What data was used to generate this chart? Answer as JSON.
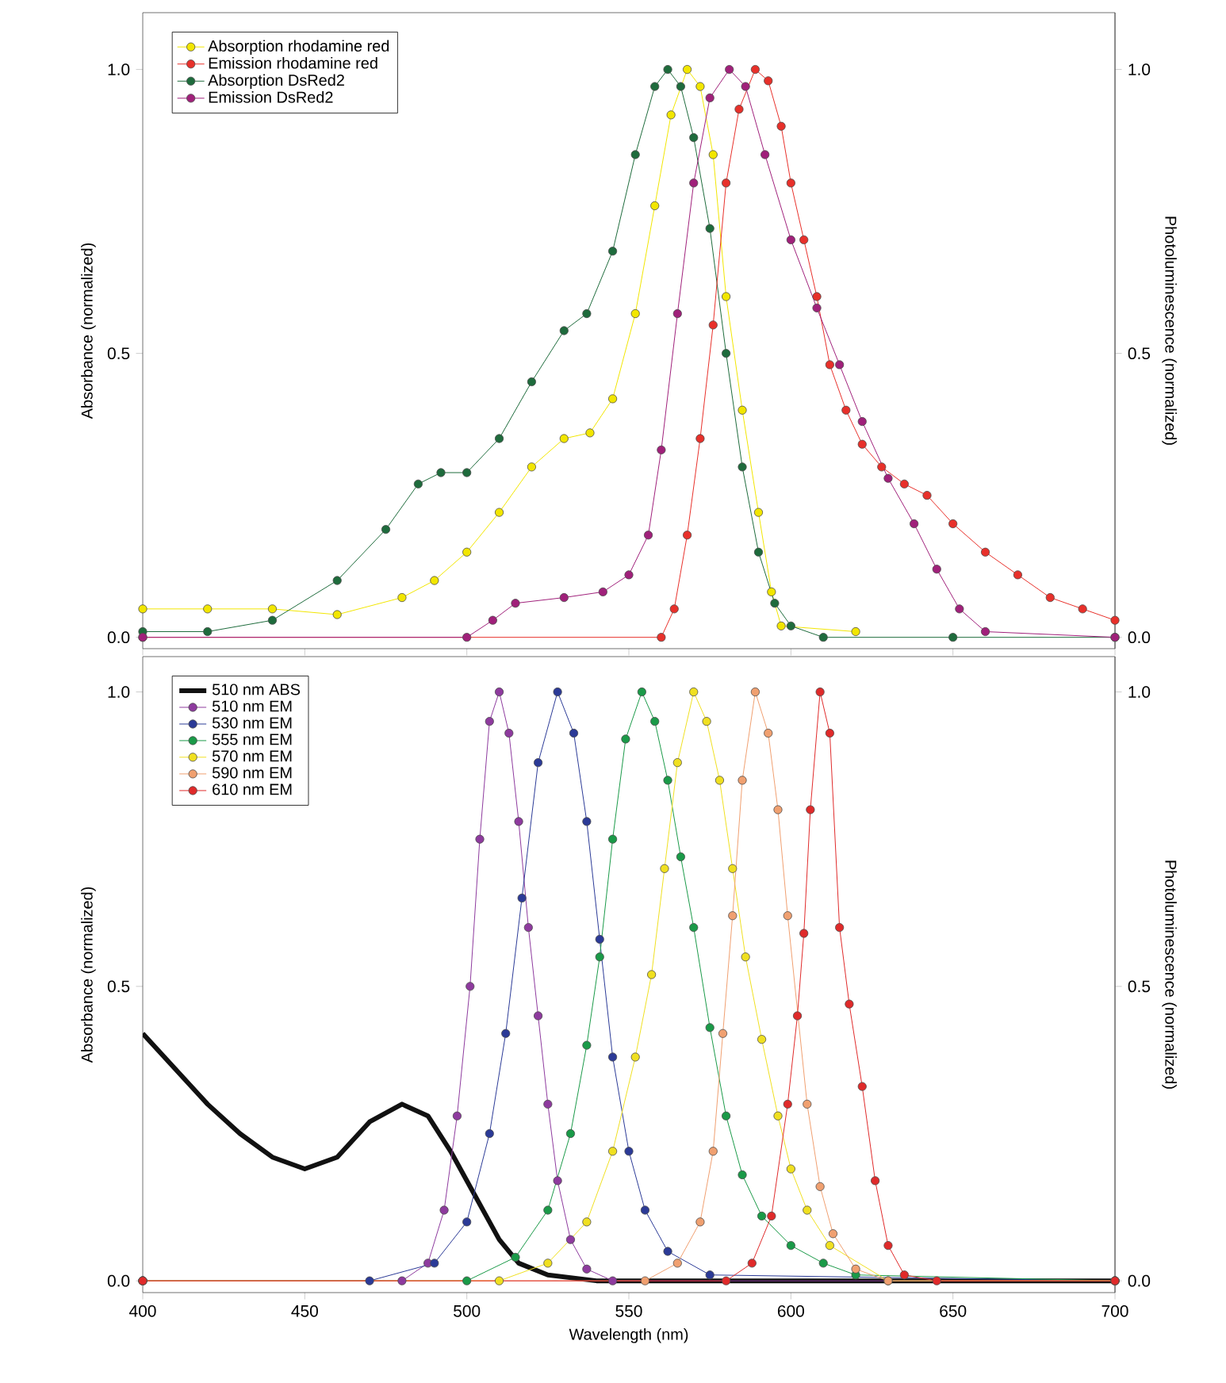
{
  "chart_data": [
    {
      "type": "line",
      "marker": "circle",
      "legend": "top left",
      "tick_labels": "y",
      "ylabel": "Absorbance (normalized)",
      "y2label": "Photoluminescence (normalized)",
      "xlim": [
        400,
        700
      ],
      "xticks": [
        400,
        450,
        500,
        550,
        600,
        650,
        700
      ],
      "ylim": [
        -0.02,
        1.1
      ],
      "yticks": [
        {
          "value": 0,
          "label": "0.0"
        },
        {
          "value": 0.5,
          "label": "0.5"
        },
        {
          "value": 1,
          "label": "1.0"
        }
      ],
      "y2lim": [
        -0.02,
        1.1
      ],
      "y2ticks": [
        {
          "value": 0,
          "label": "0.0"
        },
        {
          "value": 0.5,
          "label": "0.5"
        },
        {
          "value": 1,
          "label": "1.0"
        }
      ],
      "series": [
        {
          "name": "Absorption rhodamine red",
          "color": "#f2e600",
          "axis": "y",
          "x": [
            400,
            420,
            440,
            460,
            480,
            490,
            500,
            510,
            520,
            530,
            538,
            545,
            552,
            558,
            563,
            568,
            572,
            576,
            580,
            585,
            590,
            594,
            597,
            620
          ],
          "values": [
            0.05,
            0.05,
            0.05,
            0.04,
            0.07,
            0.1,
            0.15,
            0.22,
            0.3,
            0.35,
            0.36,
            0.42,
            0.57,
            0.76,
            0.92,
            1.0,
            0.97,
            0.85,
            0.6,
            0.4,
            0.22,
            0.08,
            0.02,
            0.01
          ]
        },
        {
          "name": "Emission rhodamine red",
          "color": "#e8302a",
          "axis": "y2",
          "x": [
            400,
            560,
            564,
            568,
            572,
            576,
            580,
            584,
            589,
            593,
            597,
            600,
            604,
            608,
            612,
            617,
            622,
            628,
            635,
            642,
            650,
            660,
            670,
            680,
            690,
            700
          ],
          "values": [
            0.0,
            0.0,
            0.05,
            0.18,
            0.35,
            0.55,
            0.8,
            0.93,
            1.0,
            0.98,
            0.9,
            0.8,
            0.7,
            0.6,
            0.48,
            0.4,
            0.34,
            0.3,
            0.27,
            0.25,
            0.2,
            0.15,
            0.11,
            0.07,
            0.05,
            0.03
          ]
        },
        {
          "name": "Absorption DsRed2",
          "color": "#1e6b3c",
          "axis": "y",
          "x": [
            400,
            420,
            440,
            460,
            475,
            485,
            492,
            500,
            510,
            520,
            530,
            537,
            545,
            552,
            558,
            562,
            566,
            570,
            575,
            580,
            585,
            590,
            595,
            600,
            610,
            650,
            700
          ],
          "values": [
            0.01,
            0.01,
            0.03,
            0.1,
            0.19,
            0.27,
            0.29,
            0.29,
            0.35,
            0.45,
            0.54,
            0.57,
            0.68,
            0.85,
            0.97,
            1.0,
            0.97,
            0.88,
            0.72,
            0.5,
            0.3,
            0.15,
            0.06,
            0.02,
            0.0,
            0.0,
            0.0
          ]
        },
        {
          "name": "Emission DsRed2",
          "color": "#a0207a",
          "axis": "y2",
          "x": [
            400,
            500,
            508,
            515,
            530,
            542,
            550,
            556,
            560,
            565,
            570,
            575,
            581,
            586,
            592,
            600,
            608,
            615,
            622,
            630,
            638,
            645,
            652,
            660,
            700
          ],
          "values": [
            0.0,
            0.0,
            0.03,
            0.06,
            0.07,
            0.08,
            0.11,
            0.18,
            0.33,
            0.57,
            0.8,
            0.95,
            1.0,
            0.97,
            0.85,
            0.7,
            0.58,
            0.48,
            0.38,
            0.28,
            0.2,
            0.12,
            0.05,
            0.01,
            0.0
          ]
        }
      ]
    },
    {
      "type": "line",
      "marker": "circle",
      "legend": "top left",
      "xlabel": "Wavelength (nm)",
      "ylabel": "Absorbance (normalized)",
      "y2label": "Photoluminescence (normalized)",
      "xlim": [
        400,
        700
      ],
      "xticks": [
        400,
        450,
        500,
        550,
        600,
        650,
        700
      ],
      "ylim": [
        -0.02,
        1.06
      ],
      "yticks": [
        {
          "value": 0,
          "label": "0.0"
        },
        {
          "value": 0.5,
          "label": "0.5"
        },
        {
          "value": 1,
          "label": "1.0"
        }
      ],
      "y2lim": [
        -0.02,
        1.06
      ],
      "y2ticks": [
        {
          "value": 0,
          "label": "0.0"
        },
        {
          "value": 0.5,
          "label": "0.5"
        },
        {
          "value": 1,
          "label": "1.0"
        }
      ],
      "series": [
        {
          "name": "510 nm ABS",
          "color": "#111111",
          "axis": "y",
          "marker": "none",
          "x": [
            400,
            410,
            420,
            430,
            440,
            450,
            460,
            470,
            480,
            488,
            495,
            502,
            510,
            516,
            525,
            540,
            700
          ],
          "values": [
            0.42,
            0.36,
            0.3,
            0.25,
            0.21,
            0.19,
            0.21,
            0.27,
            0.3,
            0.28,
            0.22,
            0.15,
            0.07,
            0.03,
            0.01,
            0.0,
            0.0
          ]
        },
        {
          "name": "510 nm EM",
          "color": "#8e3a9e",
          "axis": "y2",
          "x": [
            400,
            480,
            488,
            493,
            497,
            501,
            504,
            507,
            510,
            513,
            516,
            519,
            522,
            525,
            528,
            532,
            537,
            545,
            700
          ],
          "values": [
            0.0,
            0.0,
            0.03,
            0.12,
            0.28,
            0.5,
            0.75,
            0.95,
            1.0,
            0.93,
            0.78,
            0.6,
            0.45,
            0.3,
            0.17,
            0.07,
            0.02,
            0.0,
            0.0
          ]
        },
        {
          "name": "530 nm EM",
          "color": "#2b3a97",
          "axis": "y2",
          "x": [
            400,
            470,
            490,
            500,
            507,
            512,
            517,
            522,
            528,
            533,
            537,
            541,
            545,
            550,
            555,
            562,
            575,
            700
          ],
          "values": [
            0.0,
            0.0,
            0.03,
            0.1,
            0.25,
            0.42,
            0.65,
            0.88,
            1.0,
            0.93,
            0.78,
            0.58,
            0.38,
            0.22,
            0.12,
            0.05,
            0.01,
            0.0
          ]
        },
        {
          "name": "555 nm EM",
          "color": "#1a9a48",
          "axis": "y2",
          "x": [
            400,
            500,
            515,
            525,
            532,
            537,
            541,
            545,
            549,
            554,
            558,
            562,
            566,
            570,
            575,
            580,
            585,
            591,
            600,
            610,
            620,
            700
          ],
          "values": [
            0.0,
            0.0,
            0.04,
            0.12,
            0.25,
            0.4,
            0.55,
            0.75,
            0.92,
            1.0,
            0.95,
            0.85,
            0.72,
            0.6,
            0.43,
            0.28,
            0.18,
            0.11,
            0.06,
            0.03,
            0.01,
            0.0
          ]
        },
        {
          "name": "570 nm EM",
          "color": "#f0e020",
          "axis": "y2",
          "x": [
            400,
            510,
            525,
            537,
            545,
            552,
            557,
            561,
            565,
            570,
            574,
            578,
            582,
            586,
            591,
            596,
            600,
            605,
            612,
            630,
            700
          ],
          "values": [
            0.0,
            0.0,
            0.03,
            0.1,
            0.22,
            0.38,
            0.52,
            0.7,
            0.88,
            1.0,
            0.95,
            0.85,
            0.7,
            0.55,
            0.41,
            0.28,
            0.19,
            0.12,
            0.06,
            0.0,
            0.0
          ]
        },
        {
          "name": "590 nm EM",
          "color": "#f0a070",
          "axis": "y2",
          "x": [
            400,
            555,
            565,
            572,
            576,
            579,
            582,
            585,
            589,
            593,
            596,
            599,
            605,
            609,
            613,
            620,
            630,
            700
          ],
          "values": [
            0.0,
            0.0,
            0.03,
            0.1,
            0.22,
            0.42,
            0.62,
            0.85,
            1.0,
            0.93,
            0.8,
            0.62,
            0.3,
            0.16,
            0.08,
            0.02,
            0.0,
            0.0
          ]
        },
        {
          "name": "610 nm EM",
          "color": "#e02a2a",
          "axis": "y2",
          "x": [
            400,
            580,
            588,
            594,
            599,
            602,
            604,
            606,
            609,
            612,
            615,
            618,
            622,
            626,
            630,
            635,
            645,
            700
          ],
          "values": [
            0.0,
            0.0,
            0.03,
            0.11,
            0.3,
            0.45,
            0.59,
            0.8,
            1.0,
            0.93,
            0.6,
            0.47,
            0.33,
            0.17,
            0.06,
            0.01,
            0.0,
            0.0
          ]
        }
      ]
    }
  ]
}
